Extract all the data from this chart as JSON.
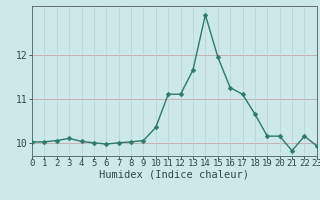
{
  "x": [
    0,
    1,
    2,
    3,
    4,
    5,
    6,
    7,
    8,
    9,
    10,
    11,
    12,
    13,
    14,
    15,
    16,
    17,
    18,
    19,
    20,
    21,
    22,
    23
  ],
  "y": [
    10.02,
    10.02,
    10.05,
    10.1,
    10.03,
    10.0,
    9.97,
    10.0,
    10.02,
    10.05,
    10.35,
    11.1,
    11.1,
    11.65,
    12.9,
    11.95,
    11.25,
    11.1,
    10.65,
    10.15,
    10.15,
    9.82,
    10.15,
    9.93
  ],
  "xlabel": "Humidex (Indice chaleur)",
  "xlim": [
    0,
    23
  ],
  "ylim": [
    9.7,
    13.1
  ],
  "yticks": [
    10,
    11,
    12
  ],
  "xticks": [
    0,
    1,
    2,
    3,
    4,
    5,
    6,
    7,
    8,
    9,
    10,
    11,
    12,
    13,
    14,
    15,
    16,
    17,
    18,
    19,
    20,
    21,
    22,
    23
  ],
  "line_color": "#2d7a6a",
  "bg_color": "#cce8e8",
  "hgrid_color": "#c8a8a8",
  "vgrid_color": "#b8d0d0",
  "spine_color": "#607070",
  "tick_label_color": "#304848",
  "xlabel_fontsize": 7.5,
  "tick_fontsize": 6.5,
  "line_width": 1.0,
  "marker_size": 2.5
}
